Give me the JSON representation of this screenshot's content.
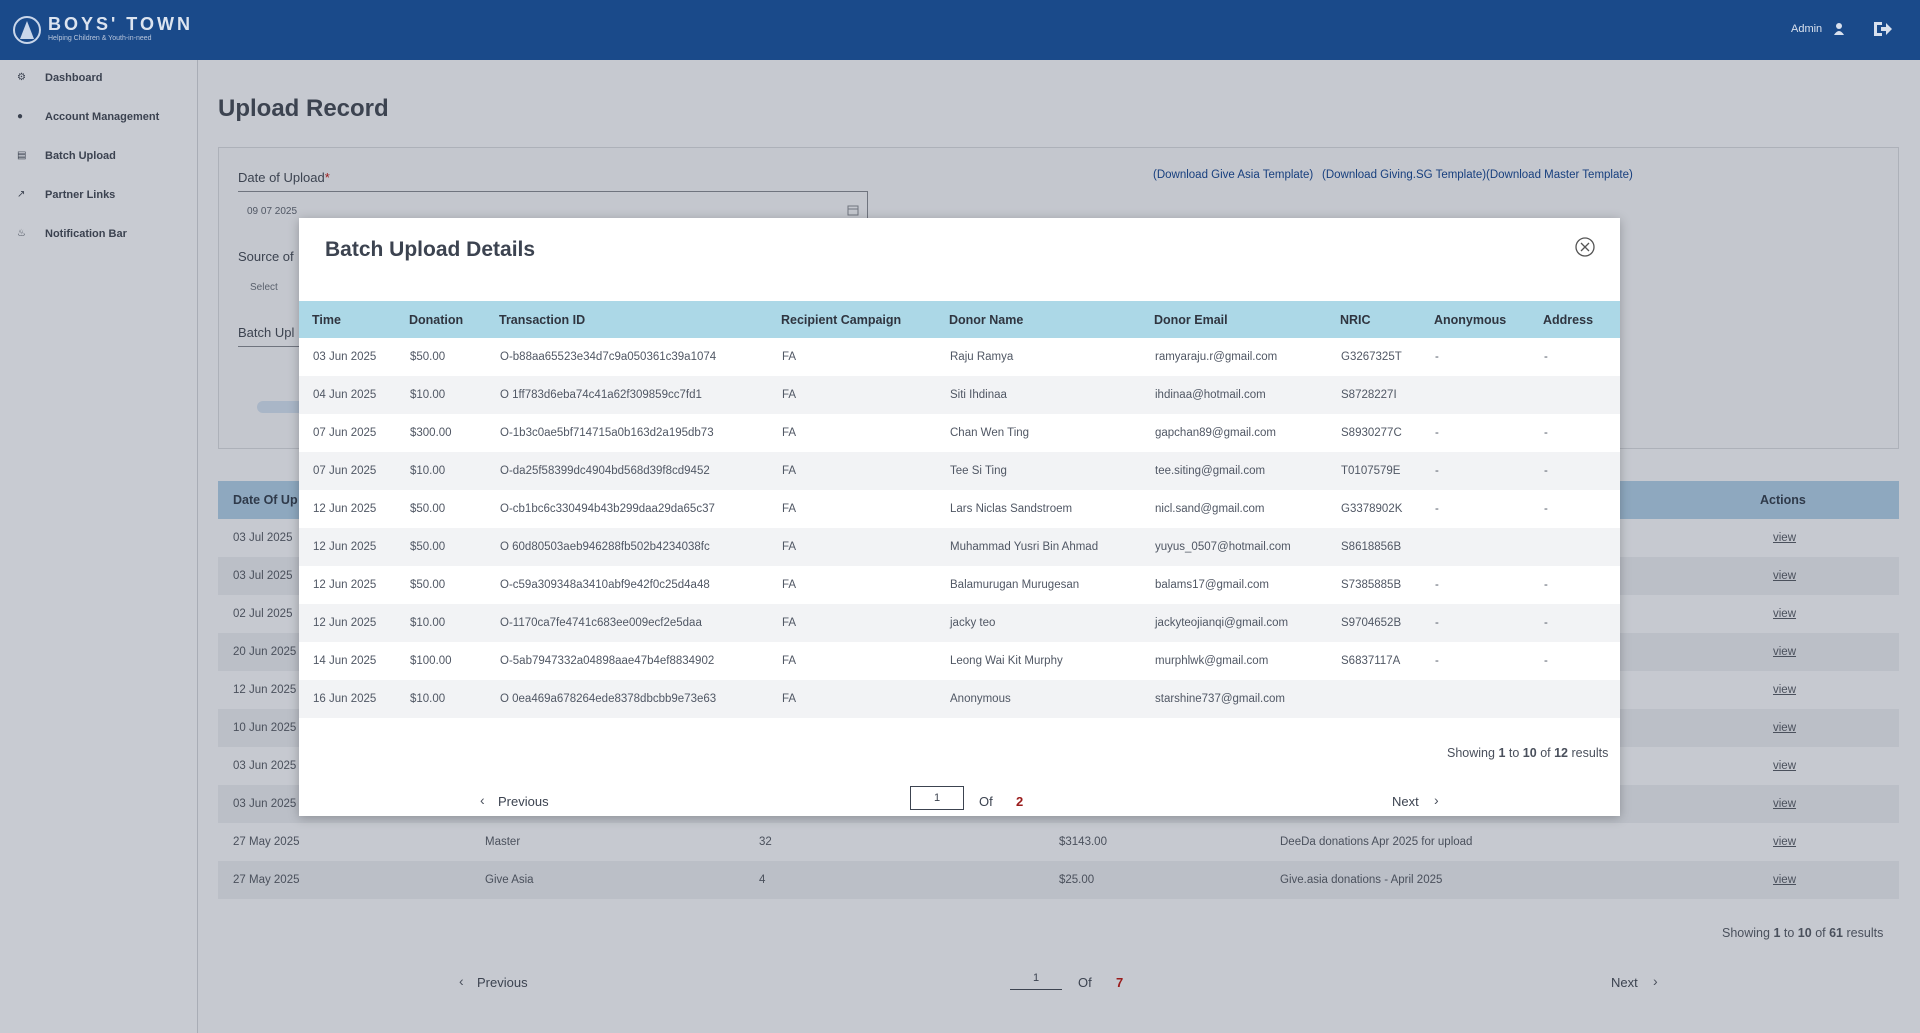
{
  "header": {
    "brand": "BOYS' TOWN",
    "tagline": "Helping Children & Youth-in-need",
    "user": "Admin"
  },
  "sidebar": {
    "items": [
      "Dashboard",
      "Account Management",
      "Batch Upload",
      "Partner Links",
      "Notification Bar"
    ]
  },
  "page": {
    "title": "Upload Record"
  },
  "form": {
    "date_label": "Date of Upload",
    "required": "*",
    "date_value": "09 07 2025",
    "source_label": "Source of",
    "source_placeholder": "Select",
    "batch_label": "Batch Upl",
    "links": [
      "(Download Give Asia Template)",
      "(Download Giving.SG Template)",
      "(Download Master Template)"
    ]
  },
  "records_table": {
    "header": {
      "date": "Date Of Up",
      "actions": "Actions"
    },
    "rows": [
      [
        "03 Jul 2025",
        null,
        null,
        null,
        null,
        "view"
      ],
      [
        "03 Jul 2025",
        null,
        null,
        null,
        null,
        "view"
      ],
      [
        "02 Jul 2025",
        null,
        null,
        null,
        null,
        "view"
      ],
      [
        "20 Jun 2025",
        null,
        null,
        null,
        null,
        "view"
      ],
      [
        "12 Jun 2025",
        null,
        null,
        null,
        null,
        "view"
      ],
      [
        "10 Jun 2025",
        null,
        null,
        null,
        null,
        "view"
      ],
      [
        "03 Jun 2025",
        null,
        null,
        null,
        null,
        "view"
      ],
      [
        "03 Jun 2025",
        null,
        null,
        null,
        null,
        "view"
      ],
      [
        "27 May 2025",
        "Master",
        "32",
        "$3143.00",
        "DeeDa donations Apr 2025 for upload",
        "view"
      ],
      [
        "27 May 2025",
        "Give Asia",
        "4",
        "$25.00",
        "Give.asia donations - April 2025",
        "view"
      ]
    ],
    "pagination": {
      "showing": "Showing",
      "from": 1,
      "to_word": "to",
      "to": 10,
      "of_word": "of",
      "total": 61,
      "results": "results",
      "previous": "Previous",
      "page": 1,
      "of_label": "Of",
      "pages": 7,
      "next": "Next"
    }
  },
  "modal": {
    "title": "Batch Upload Details",
    "columns": [
      "Time",
      "Donation",
      "Transaction ID",
      "Recipient Campaign",
      "Donor Name",
      "Donor Email",
      "NRIC",
      "Anonymous",
      "Address"
    ],
    "rows": [
      [
        "03 Jun 2025",
        "$50.00",
        "O-b88aa65523e34d7c9a050361c39a1074",
        "FA",
        "Raju Ramya",
        "ramyaraju.r@gmail.com",
        "G3267325T",
        "-",
        "-"
      ],
      [
        "04 Jun 2025",
        "$10.00",
        "O 1ff783d6eba74c41a62f309859cc7fd1",
        "FA",
        "Siti Ihdinaa",
        "ihdinaa@hotmail.com",
        "S8728227I",
        null,
        null
      ],
      [
        "07 Jun 2025",
        "$300.00",
        "O-1b3c0ae5bf714715a0b163d2a195db73",
        "FA",
        "Chan Wen Ting",
        "gapchan89@gmail.com",
        "S8930277C",
        "-",
        "-"
      ],
      [
        "07 Jun 2025",
        "$10.00",
        "O-da25f58399dc4904bd568d39f8cd9452",
        "FA",
        "Tee Si Ting",
        "tee.siting@gmail.com",
        "T0107579E",
        "-",
        "-"
      ],
      [
        "12 Jun 2025",
        "$50.00",
        "O-cb1bc6c330494b43b299daa29da65c37",
        "FA",
        "Lars Niclas Sandstroem",
        "nicl.sand@gmail.com",
        "G3378902K",
        "-",
        "-"
      ],
      [
        "12 Jun 2025",
        "$50.00",
        "O 60d80503aeb946288fb502b4234038fc",
        "FA",
        "Muhammad Yusri Bin Ahmad",
        "yuyus_0507@hotmail.com",
        "S8618856B",
        null,
        null
      ],
      [
        "12 Jun 2025",
        "$50.00",
        "O-c59a309348a3410abf9e42f0c25d4a48",
        "FA",
        "Balamurugan Murugesan",
        "balams17@gmail.com",
        "S7385885B",
        "-",
        "-"
      ],
      [
        "12 Jun 2025",
        "$10.00",
        "O-1170ca7fe4741c683ee009ecf2e5daa",
        "FA",
        "jacky teo",
        "jackyteojianqi@gmail.com",
        "S9704652B",
        "-",
        "-"
      ],
      [
        "14 Jun 2025",
        "$100.00",
        "O-5ab7947332a04898aae47b4ef8834902",
        "FA",
        "Leong Wai Kit Murphy",
        "murphlwk@gmail.com",
        "S6837117A",
        "-",
        "-"
      ],
      [
        "16 Jun 2025",
        "$10.00",
        "O 0ea469a678264ede8378dbcbb9e73e63",
        "FA",
        "Anonymous",
        "starshine737@gmail.com",
        null,
        null,
        null
      ]
    ],
    "pagination": {
      "showing": "Showing",
      "from": 1,
      "to_word": "to",
      "to": 10,
      "of_word": "of",
      "total": 12,
      "results": "results",
      "previous": "Previous",
      "page": 1,
      "of_label": "Of",
      "pages": 2,
      "next": "Next"
    }
  }
}
